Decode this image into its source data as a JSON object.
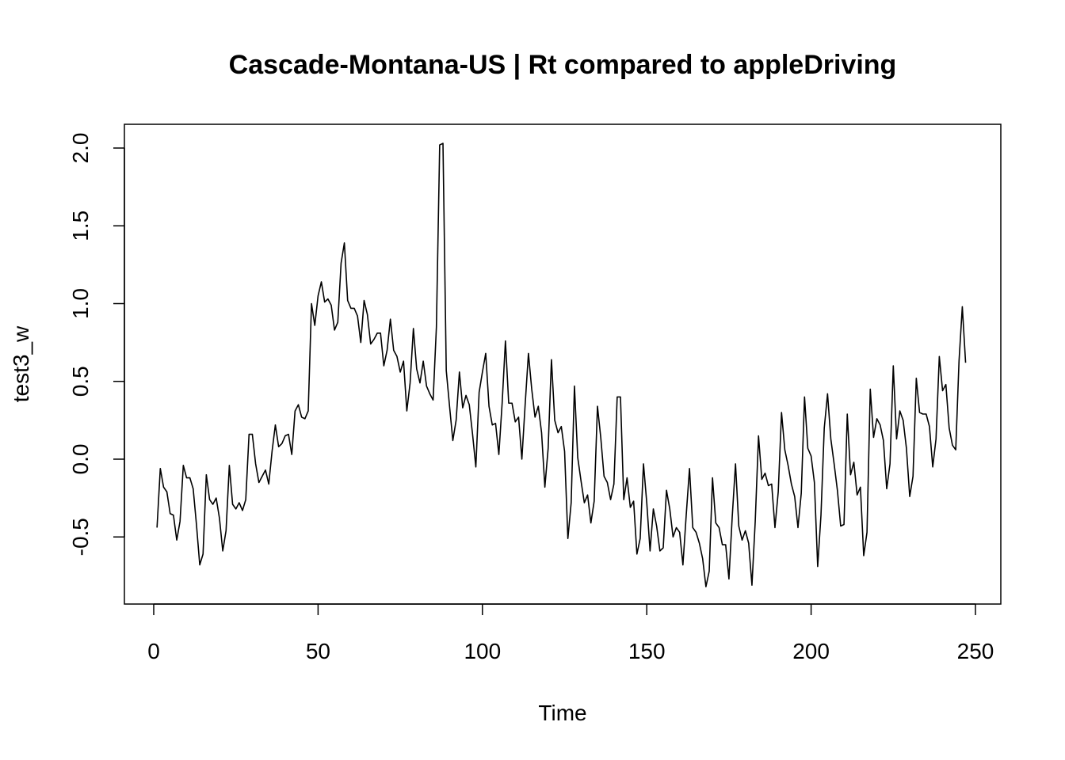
{
  "chart_data": {
    "type": "line",
    "title": "Cascade-Montana-US | Rt compared to appleDriving",
    "xlabel": "Time",
    "ylabel": "test3_w",
    "xlim": [
      0,
      250
    ],
    "ylim": [
      -0.85,
      2.05
    ],
    "x_ticks": [
      0,
      50,
      100,
      150,
      200,
      250
    ],
    "y_ticks": [
      -0.5,
      0.0,
      0.5,
      1.0,
      1.5,
      2.0
    ],
    "x_tick_labels": [
      "0",
      "50",
      "100",
      "150",
      "200",
      "250"
    ],
    "y_tick_labels": [
      "-0.5",
      "0.0",
      "0.5",
      "1.0",
      "1.5",
      "2.0"
    ],
    "grid": false,
    "legend": "none",
    "series": [
      {
        "x_start": 1,
        "x_step": 1,
        "values": [
          -0.44,
          -0.06,
          -0.18,
          -0.21,
          -0.35,
          -0.36,
          -0.52,
          -0.4,
          -0.04,
          -0.12,
          -0.12,
          -0.19,
          -0.42,
          -0.68,
          -0.61,
          -0.1,
          -0.26,
          -0.29,
          -0.25,
          -0.38,
          -0.59,
          -0.46,
          -0.04,
          -0.29,
          -0.32,
          -0.28,
          -0.33,
          -0.26,
          0.16,
          0.16,
          -0.03,
          -0.15,
          -0.11,
          -0.07,
          -0.16,
          0.05,
          0.22,
          0.08,
          0.1,
          0.15,
          0.16,
          0.03,
          0.31,
          0.35,
          0.27,
          0.26,
          0.31,
          1.0,
          0.86,
          1.05,
          1.14,
          1.01,
          1.03,
          0.99,
          0.83,
          0.88,
          1.26,
          1.39,
          1.02,
          0.97,
          0.97,
          0.92,
          0.75,
          1.02,
          0.93,
          0.74,
          0.77,
          0.81,
          0.81,
          0.6,
          0.7,
          0.9,
          0.7,
          0.66,
          0.56,
          0.63,
          0.31,
          0.49,
          0.84,
          0.58,
          0.49,
          0.63,
          0.47,
          0.42,
          0.38,
          0.85,
          2.02,
          2.03,
          0.57,
          0.34,
          0.12,
          0.25,
          0.56,
          0.33,
          0.41,
          0.35,
          0.16,
          -0.05,
          0.43,
          0.56,
          0.68,
          0.34,
          0.22,
          0.23,
          0.03,
          0.36,
          0.76,
          0.36,
          0.36,
          0.24,
          0.27,
          0.0,
          0.35,
          0.68,
          0.45,
          0.27,
          0.34,
          0.17,
          -0.18,
          0.07,
          0.64,
          0.25,
          0.17,
          0.21,
          0.05,
          -0.51,
          -0.28,
          0.47,
          0.01,
          -0.14,
          -0.28,
          -0.23,
          -0.41,
          -0.27,
          0.34,
          0.14,
          -0.11,
          -0.15,
          -0.26,
          -0.16,
          0.4,
          0.4,
          -0.26,
          -0.12,
          -0.31,
          -0.27,
          -0.61,
          -0.51,
          -0.03,
          -0.28,
          -0.59,
          -0.32,
          -0.43,
          -0.59,
          -0.57,
          -0.2,
          -0.32,
          -0.5,
          -0.44,
          -0.47,
          -0.68,
          -0.36,
          -0.06,
          -0.44,
          -0.47,
          -0.54,
          -0.64,
          -0.82,
          -0.72,
          -0.12,
          -0.41,
          -0.44,
          -0.55,
          -0.55,
          -0.77,
          -0.37,
          -0.03,
          -0.43,
          -0.52,
          -0.46,
          -0.54,
          -0.81,
          -0.4,
          0.15,
          -0.13,
          -0.09,
          -0.17,
          -0.16,
          -0.44,
          -0.21,
          0.3,
          0.06,
          -0.04,
          -0.16,
          -0.24,
          -0.44,
          -0.22,
          0.4,
          0.07,
          0.02,
          -0.15,
          -0.69,
          -0.36,
          0.2,
          0.42,
          0.13,
          -0.03,
          -0.2,
          -0.43,
          -0.42,
          0.29,
          -0.1,
          -0.02,
          -0.23,
          -0.18,
          -0.62,
          -0.47,
          0.45,
          0.14,
          0.26,
          0.22,
          0.12,
          -0.19,
          -0.03,
          0.6,
          0.13,
          0.31,
          0.25,
          0.07,
          -0.24,
          -0.11,
          0.52,
          0.3,
          0.29,
          0.29,
          0.21,
          -0.05,
          0.13,
          0.66,
          0.44,
          0.48,
          0.2,
          0.09,
          0.06,
          0.63,
          0.98,
          0.62
        ]
      }
    ]
  }
}
